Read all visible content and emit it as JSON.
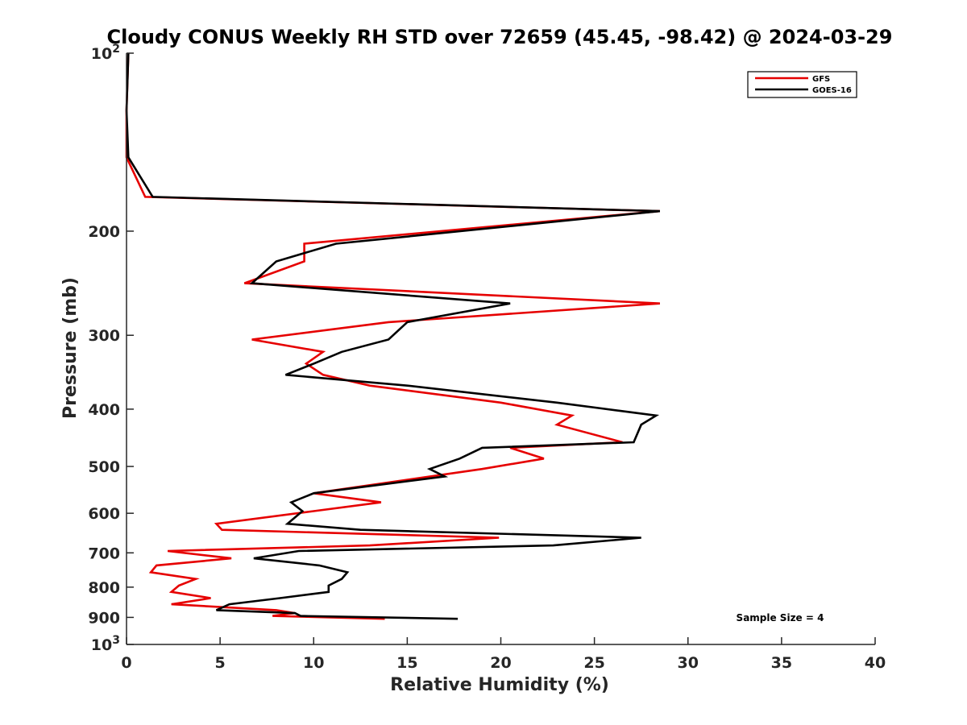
{
  "chart_data": {
    "type": "line",
    "title": "Cloudy CONUS Weekly RH STD over 72659 (45.45, -98.42) @ 2024-03-29",
    "xlabel": "Relative Humidity (%)",
    "ylabel": "Pressure (mb)",
    "xlim": [
      0,
      40
    ],
    "ylim": [
      100,
      1000
    ],
    "y_scale": "log",
    "y_reversed": true,
    "grid": false,
    "legend_position": "top-right",
    "x_ticks": [
      "0",
      "5",
      "10",
      "15",
      "20",
      "25",
      "30",
      "35",
      "40"
    ],
    "y_ticks": [
      {
        "value": 100,
        "base": "10",
        "exp": "2"
      },
      {
        "value": 200,
        "label": "200"
      },
      {
        "value": 300,
        "label": "300"
      },
      {
        "value": 400,
        "label": "400"
      },
      {
        "value": 500,
        "label": "500"
      },
      {
        "value": 600,
        "label": "600"
      },
      {
        "value": 700,
        "label": "700"
      },
      {
        "value": 800,
        "label": "800"
      },
      {
        "value": 900,
        "label": "900"
      },
      {
        "value": 1000,
        "base": "10",
        "exp": "3"
      }
    ],
    "annotation": "Sample Size = 4",
    "series": [
      {
        "name": "GFS",
        "color": "#e60000",
        "points": [
          [
            0.1,
            100
          ],
          [
            0.0,
            125
          ],
          [
            0.0,
            150
          ],
          [
            1.0,
            175
          ],
          [
            28.5,
            185
          ],
          [
            9.5,
            210
          ],
          [
            9.5,
            225
          ],
          [
            6.3,
            245
          ],
          [
            28.5,
            265
          ],
          [
            14.0,
            285
          ],
          [
            6.7,
            305
          ],
          [
            10.5,
            320
          ],
          [
            9.6,
            335
          ],
          [
            10.5,
            350
          ],
          [
            13.0,
            365
          ],
          [
            20.0,
            390
          ],
          [
            23.8,
            410
          ],
          [
            23.0,
            425
          ],
          [
            26.5,
            455
          ],
          [
            20.5,
            465
          ],
          [
            22.3,
            485
          ],
          [
            19.0,
            505
          ],
          [
            10.0,
            555
          ],
          [
            13.6,
            575
          ],
          [
            10.0,
            595
          ],
          [
            4.8,
            625
          ],
          [
            5.1,
            640
          ],
          [
            19.9,
            660
          ],
          [
            13.0,
            680
          ],
          [
            2.2,
            695
          ],
          [
            5.6,
            715
          ],
          [
            1.6,
            735
          ],
          [
            1.3,
            755
          ],
          [
            3.7,
            775
          ],
          [
            2.8,
            795
          ],
          [
            2.4,
            815
          ],
          [
            4.5,
            835
          ],
          [
            2.4,
            855
          ],
          [
            8.0,
            875
          ],
          [
            9.0,
            885
          ],
          [
            7.8,
            895
          ],
          [
            13.8,
            905
          ]
        ]
      },
      {
        "name": "GOES-16",
        "color": "#000000",
        "points": [
          [
            0.1,
            100
          ],
          [
            0.0,
            125
          ],
          [
            0.1,
            150
          ],
          [
            1.4,
            175
          ],
          [
            28.5,
            185
          ],
          [
            11.2,
            210
          ],
          [
            8.0,
            225
          ],
          [
            6.7,
            245
          ],
          [
            20.5,
            265
          ],
          [
            15.0,
            285
          ],
          [
            14.0,
            305
          ],
          [
            11.5,
            320
          ],
          [
            10.0,
            335
          ],
          [
            8.5,
            350
          ],
          [
            15.0,
            365
          ],
          [
            23.0,
            390
          ],
          [
            28.3,
            410
          ],
          [
            27.5,
            425
          ],
          [
            27.1,
            455
          ],
          [
            19.0,
            465
          ],
          [
            17.8,
            485
          ],
          [
            16.2,
            505
          ],
          [
            17.0,
            520
          ],
          [
            10.0,
            555
          ],
          [
            8.8,
            575
          ],
          [
            9.4,
            595
          ],
          [
            8.6,
            625
          ],
          [
            12.5,
            640
          ],
          [
            27.5,
            660
          ],
          [
            22.8,
            680
          ],
          [
            9.2,
            695
          ],
          [
            6.8,
            715
          ],
          [
            10.3,
            735
          ],
          [
            11.8,
            755
          ],
          [
            11.5,
            775
          ],
          [
            10.8,
            795
          ],
          [
            10.8,
            815
          ],
          [
            8.2,
            835
          ],
          [
            5.5,
            855
          ],
          [
            4.8,
            875
          ],
          [
            9.0,
            885
          ],
          [
            9.3,
            895
          ],
          [
            17.7,
            905
          ]
        ]
      }
    ]
  }
}
